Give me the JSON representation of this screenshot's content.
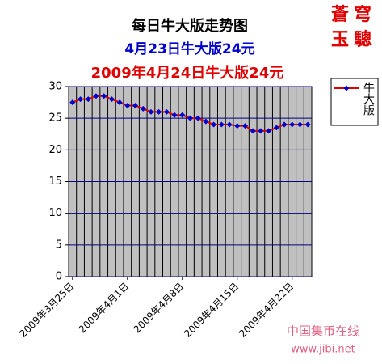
{
  "chart_data": {
    "type": "line",
    "title": "每日牛大版走势图",
    "subtitle": "4月23日牛大版24元",
    "subtitle2": "2009年4月24日牛大版24元",
    "logo": [
      "蒼穹",
      "玉驄"
    ],
    "watermark": [
      "中国集币在线",
      "www.jibi.net"
    ],
    "categories": [
      "2009年3月25日",
      null,
      null,
      null,
      null,
      null,
      null,
      "2009年4月1日",
      null,
      null,
      null,
      null,
      null,
      null,
      "2009年4月8日",
      null,
      null,
      null,
      null,
      null,
      null,
      "2009年4月15日",
      null,
      null,
      null,
      null,
      null,
      null,
      "2009年4月22日",
      null,
      null
    ],
    "series": [
      {
        "name": "牛大版",
        "color": "#e00000",
        "marker_color": "#0000cc",
        "values": [
          27.5,
          28,
          28,
          28.5,
          28.5,
          28,
          27.5,
          27,
          27,
          26.5,
          26,
          26,
          26,
          25.5,
          25.5,
          25,
          25,
          24.5,
          24,
          24,
          24,
          23.8,
          23.8,
          23,
          23,
          23,
          23.5,
          24,
          24,
          24,
          24
        ]
      }
    ],
    "ylim": [
      0,
      30
    ],
    "yticks": [
      0,
      5,
      10,
      15,
      20,
      25,
      30
    ],
    "grid": true,
    "legend": "right",
    "plot_background": "#c0c0c0"
  }
}
